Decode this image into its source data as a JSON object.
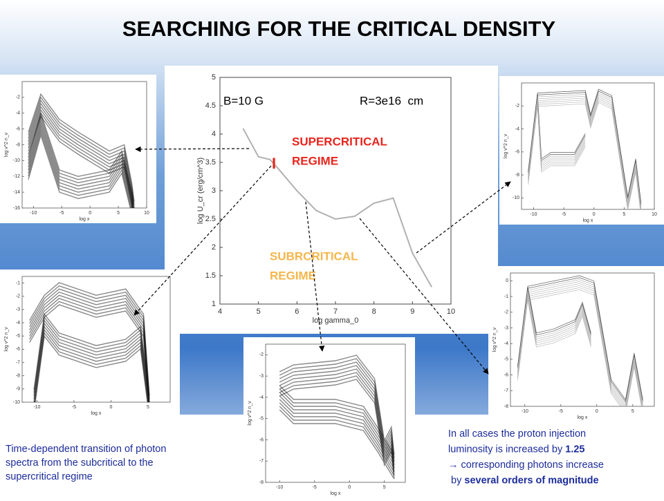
{
  "title": "SEARCHING FOR THE CRITICAL DENSITY",
  "chart_data": {
    "type": "line",
    "annotations": {
      "field": "B=10 G",
      "radius": "R=3e16  cm",
      "supercritical": [
        "SUPERCRITICAL",
        "REGIME"
      ],
      "subcritical": [
        "SUBRCRITICAL",
        "REGIME"
      ],
      "marker": "I"
    },
    "xlabel": "log gamma_0",
    "ylabel": "log U_cr (erg/cm^3)",
    "x": [
      4.6,
      5.0,
      5.3,
      5.5,
      6.0,
      6.5,
      7.0,
      7.5,
      8.0,
      8.5,
      9.0,
      9.5
    ],
    "values": [
      4.1,
      3.6,
      3.55,
      3.4,
      3.0,
      2.65,
      2.5,
      2.55,
      2.78,
      2.87,
      1.9,
      1.3
    ],
    "color": "#b0b0b0",
    "xlim": [
      4,
      10
    ],
    "ylim": [
      1,
      5
    ],
    "xticks": [
      4,
      5,
      6,
      7,
      8,
      9,
      10
    ],
    "yticks": [
      1,
      1.5,
      2,
      2.5,
      3,
      3.5,
      4,
      4.5,
      5
    ]
  },
  "panels": [
    {
      "xlabel": "log x",
      "ylabel": "log v^2 n_v",
      "xlim": [
        -12,
        10
      ],
      "ylim": [
        -16,
        0
      ],
      "xticks": [
        -10,
        -5,
        0,
        5,
        10
      ],
      "yticks": [
        -2,
        -4,
        -6,
        -8,
        -10,
        -12,
        -14,
        -16
      ]
    },
    {
      "xlabel": "log x",
      "ylabel": "log v^2 n_v",
      "xlim": [
        -12,
        8
      ],
      "ylim": [
        -10,
        -0.5
      ],
      "xticks": [
        -10,
        -5,
        0,
        5
      ],
      "yticks": [
        -1,
        -2,
        -3,
        -4,
        -5,
        -6,
        -7,
        -8,
        -9,
        -10
      ]
    },
    {
      "xlabel": "log x",
      "ylabel": "log v^2 n_v",
      "xlim": [
        -12,
        8
      ],
      "ylim": [
        -8,
        -1.5
      ],
      "xticks": [
        -10,
        -5,
        0,
        5
      ],
      "yticks": [
        -2,
        -3,
        -4,
        -5,
        -6,
        -7,
        -8
      ]
    },
    {
      "xlabel": "log x",
      "ylabel": "log v^2 n_v",
      "xlim": [
        -12,
        10
      ],
      "ylim": [
        -11,
        0
      ],
      "xticks": [
        -10,
        -5,
        0,
        5,
        10
      ],
      "yticks": [
        -2,
        -4,
        -6,
        -8,
        -10
      ]
    },
    {
      "xlabel": "log x",
      "ylabel": "log v^2 n_v",
      "xlim": [
        -12,
        8
      ],
      "ylim": [
        -8,
        0.5
      ],
      "xticks": [
        -10,
        -5,
        0,
        5
      ],
      "yticks": [
        0,
        -1,
        -2,
        -3,
        -4,
        -5,
        -6,
        -7,
        -8
      ]
    }
  ],
  "captions": {
    "left": [
      "Time-dependent transition of photon",
      "spectra from the subcritical to the",
      "supercritical regime"
    ],
    "right": [
      [
        "In all cases the proton injection"
      ],
      [
        "luminosity is increased by ",
        "1.25"
      ],
      [
        "→ corresponding photons increase"
      ],
      [
        " by ",
        "several orders of magnitude"
      ]
    ]
  }
}
